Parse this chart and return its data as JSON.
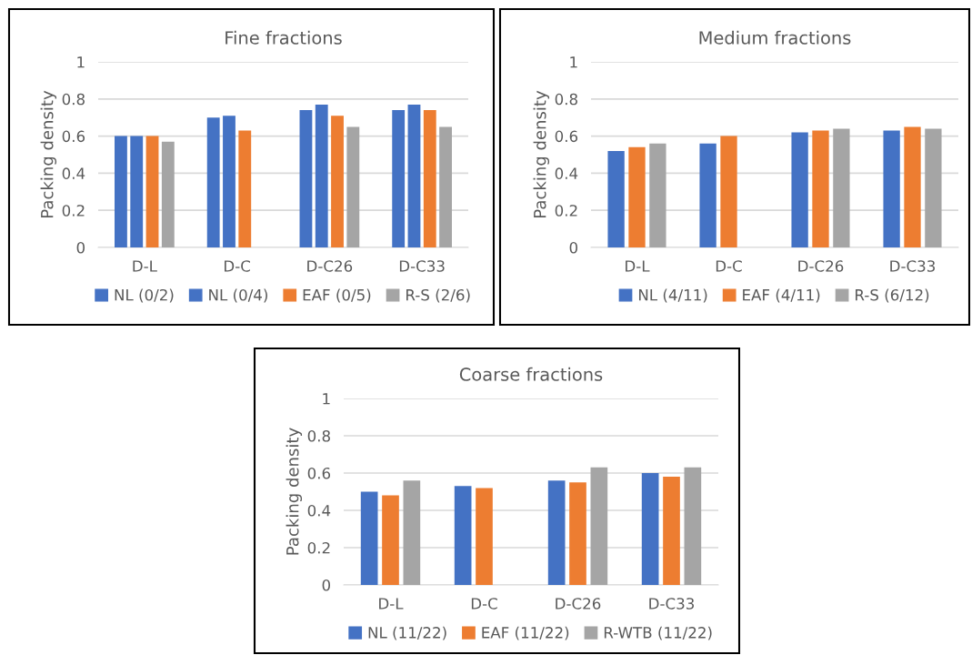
{
  "chart_data": [
    {
      "type": "bar",
      "title": "Fine fractions",
      "ylabel": "Packing density",
      "categories": [
        "D-L",
        "D-C",
        "D-C26",
        "D-C33"
      ],
      "ylim": [
        0,
        1
      ],
      "yticks": [
        0,
        0.2,
        0.4,
        0.6,
        0.8,
        1
      ],
      "grid": "y",
      "legend": "bottom",
      "series": [
        {
          "name": "NL (0/2)",
          "color": "#4472c4",
          "values": [
            0.6,
            0.7,
            0.74,
            0.74
          ]
        },
        {
          "name": "NL (0/4)",
          "color": "#4472c4",
          "values": [
            0.6,
            0.71,
            0.77,
            0.77
          ]
        },
        {
          "name": "EAF (0/5)",
          "color": "#ed7d31",
          "values": [
            0.6,
            0.63,
            0.71,
            0.74
          ]
        },
        {
          "name": "R-S (2/6)",
          "color": "#a5a5a5",
          "values": [
            0.57,
            null,
            0.65,
            0.65
          ]
        }
      ]
    },
    {
      "type": "bar",
      "title": "Medium fractions",
      "ylabel": "Packing density",
      "categories": [
        "D-L",
        "D-C",
        "D-C26",
        "D-C33"
      ],
      "ylim": [
        0,
        1
      ],
      "yticks": [
        0,
        0.2,
        0.4,
        0.6,
        0.8,
        1
      ],
      "grid": "y",
      "legend": "bottom",
      "series": [
        {
          "name": "NL (4/11)",
          "color": "#4472c4",
          "values": [
            0.52,
            0.56,
            0.62,
            0.63
          ]
        },
        {
          "name": "EAF (4/11)",
          "color": "#ed7d31",
          "values": [
            0.54,
            0.6,
            0.63,
            0.65
          ]
        },
        {
          "name": "R-S (6/12)",
          "color": "#a5a5a5",
          "values": [
            0.56,
            null,
            0.64,
            0.64
          ]
        }
      ]
    },
    {
      "type": "bar",
      "title": "Coarse fractions",
      "ylabel": "Packing density",
      "categories": [
        "D-L",
        "D-C",
        "D-C26",
        "D-C33"
      ],
      "ylim": [
        0,
        1
      ],
      "yticks": [
        0,
        0.2,
        0.4,
        0.6,
        0.8,
        1
      ],
      "grid": "y",
      "legend": "bottom",
      "series": [
        {
          "name": "NL (11/22)",
          "color": "#4472c4",
          "values": [
            0.5,
            0.53,
            0.56,
            0.6
          ]
        },
        {
          "name": "EAF (11/22)",
          "color": "#ed7d31",
          "values": [
            0.48,
            0.52,
            0.55,
            0.58
          ]
        },
        {
          "name": "R-WTB (11/22)",
          "color": "#a5a5a5",
          "values": [
            0.56,
            null,
            0.63,
            0.63
          ]
        }
      ]
    }
  ]
}
